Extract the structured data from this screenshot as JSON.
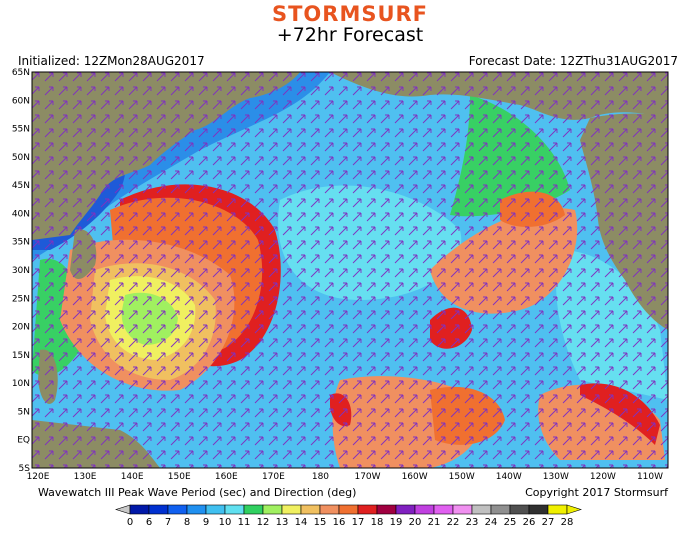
{
  "header": {
    "brand": "STORMSURF",
    "title": "+72hr Forecast",
    "initialized": "Initialized: 12ZMon28AUG2017",
    "forecast_date": "Forecast Date: 12ZThu31AUG2017"
  },
  "footer": {
    "caption": "Wavewatch III Peak Wave Period (sec) and Direction (deg)",
    "copyright": "Copyright 2017 Stormsurf"
  },
  "map": {
    "lat_labels": [
      "65N",
      "60N",
      "55N",
      "50N",
      "45N",
      "40N",
      "35N",
      "30N",
      "25N",
      "20N",
      "15N",
      "10N",
      "5N",
      "EQ",
      "5S"
    ],
    "lon_labels": [
      "120E",
      "130E",
      "140E",
      "150E",
      "160E",
      "170E",
      "180",
      "170W",
      "160W",
      "150W",
      "140W",
      "130W",
      "120W",
      "110W"
    ],
    "land_color": "#8c8c64",
    "ocean_base_color": "#4fc0f0"
  },
  "legend": {
    "values": [
      "0",
      "6",
      "7",
      "8",
      "9",
      "10",
      "11",
      "12",
      "13",
      "14",
      "15",
      "16",
      "17",
      "18",
      "19",
      "20",
      "21",
      "22",
      "23",
      "24",
      "25",
      "26",
      "27",
      "28"
    ],
    "colors": [
      "#0018a8",
      "#0030d0",
      "#1060f0",
      "#2090f0",
      "#40c0f0",
      "#60e0f0",
      "#30d060",
      "#a0f060",
      "#f0f060",
      "#f0c060",
      "#f09060",
      "#f07030",
      "#e02020",
      "#a00040",
      "#8020c0",
      "#c040e0",
      "#e060f0",
      "#f090f0",
      "#c0c0c0",
      "#909090",
      "#505050",
      "#303030",
      "#f0f000"
    ]
  }
}
